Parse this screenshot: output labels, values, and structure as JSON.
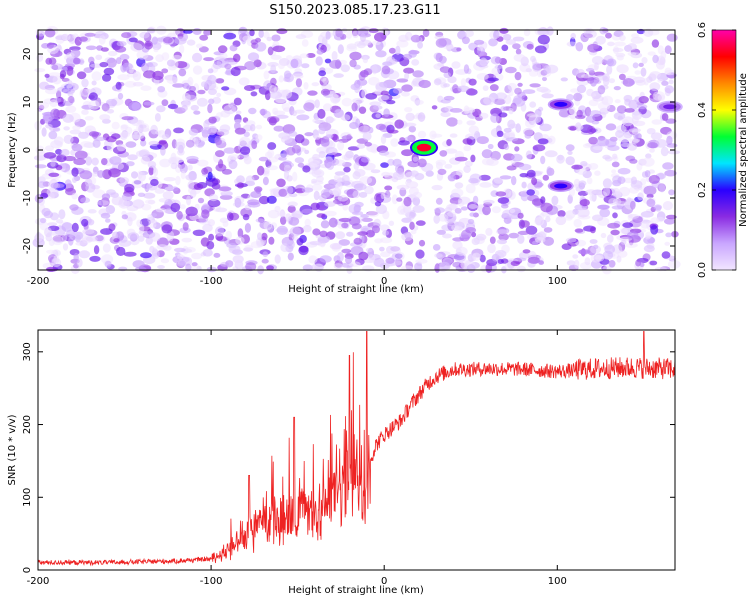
{
  "title": "S150.2023.085.17.23.G11",
  "chart_data": [
    {
      "type": "heatmap",
      "xlabel": "Height of straight line (km)",
      "ylabel": "Frequency (Hz)",
      "xlim": [
        -200,
        168
      ],
      "ylim": [
        -25,
        25
      ],
      "xticks": [
        -200,
        -100,
        0,
        100
      ],
      "yticks": [
        -20,
        -10,
        0,
        10,
        20
      ],
      "colorbar": {
        "label": "Normalized spectral amplitude",
        "range": [
          0.0,
          0.6
        ],
        "ticks": [
          "0.0",
          "0.2",
          "0.4",
          "0.6"
        ],
        "colors": [
          "#f2e6ff",
          "#c9a6ff",
          "#8a2be2",
          "#2a00ff",
          "#00e5ff",
          "#00ff33",
          "#ffff00",
          "#ff8800",
          "#ff0000",
          "#ff00aa"
        ]
      },
      "features": [
        {
          "x": 23,
          "y": 0.5,
          "amplitude": 0.55
        },
        {
          "x": 102,
          "y": 9.5,
          "amplitude": 0.2
        },
        {
          "x": 102,
          "y": -7.5,
          "amplitude": 0.2
        },
        {
          "x": 165,
          "y": 9,
          "amplitude": 0.15
        }
      ],
      "gaps_x": [
        [
          22,
          30
        ],
        [
          97,
          107
        ]
      ]
    },
    {
      "type": "line",
      "xlabel": "Height of straight line (km)",
      "ylabel": "SNR (10 * v/v)",
      "xlim": [
        -200,
        168
      ],
      "ylim": [
        0,
        330
      ],
      "xticks": [
        -200,
        -100,
        0,
        100
      ],
      "yticks": [
        0,
        100,
        200,
        300
      ],
      "color": "#ee2222",
      "series": [
        {
          "x": [
            -200,
            -160,
            -120,
            -100,
            -95,
            -90,
            -85,
            -80,
            -75,
            -70,
            -65,
            -60,
            -55,
            -50,
            -45,
            -40,
            -35,
            -30,
            -25,
            -20,
            -15,
            -10,
            -8,
            -5,
            0,
            5,
            10,
            15,
            20,
            25,
            30,
            35,
            40,
            50,
            60,
            80,
            100,
            120,
            140,
            168
          ],
          "y": [
            10,
            10,
            12,
            15,
            20,
            28,
            35,
            45,
            55,
            60,
            68,
            75,
            80,
            72,
            70,
            75,
            85,
            95,
            110,
            125,
            130,
            90,
            150,
            170,
            185,
            195,
            205,
            225,
            240,
            255,
            265,
            270,
            275,
            275,
            276,
            275,
            272,
            275,
            277,
            275
          ]
        }
      ],
      "spikes": [
        {
          "x": -78,
          "y": 130
        },
        {
          "x": -52,
          "y": 210
        },
        {
          "x": -20,
          "y": 295
        },
        {
          "x": -10,
          "y": 328
        },
        {
          "x": 150,
          "y": 328
        }
      ]
    }
  ]
}
